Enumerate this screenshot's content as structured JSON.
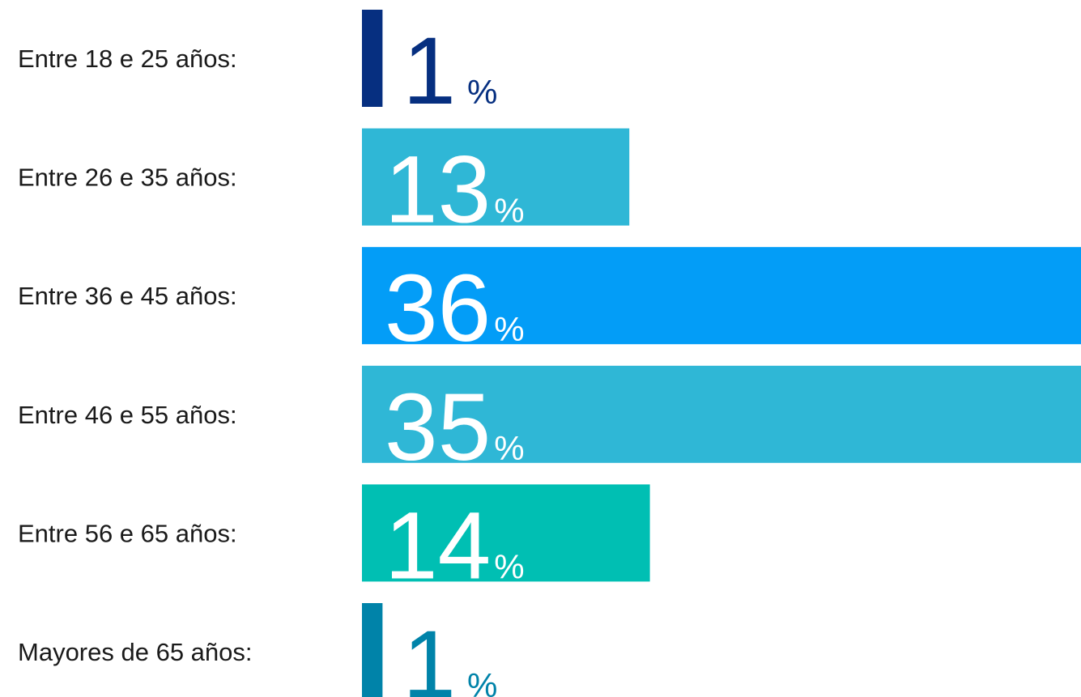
{
  "chart_data": {
    "type": "bar",
    "orientation": "horizontal",
    "categories": [
      "Entre 18 e 25 años:",
      "Entre 26 e 35 años:",
      "Entre 36 e 45 años:",
      "Entre 46 e 55 años:",
      "Entre 56 e 65 años:",
      "Mayores de 65 años:"
    ],
    "values": [
      1,
      13,
      36,
      35,
      14,
      1
    ],
    "value_labels": [
      "1%",
      "13%",
      "36%",
      "35%",
      "14%",
      "1%"
    ],
    "colors": [
      "#062f80",
      "#2fb7d6",
      "#039df7",
      "#2fb7d6",
      "#00bfb3",
      "#0083a9"
    ]
  }
}
